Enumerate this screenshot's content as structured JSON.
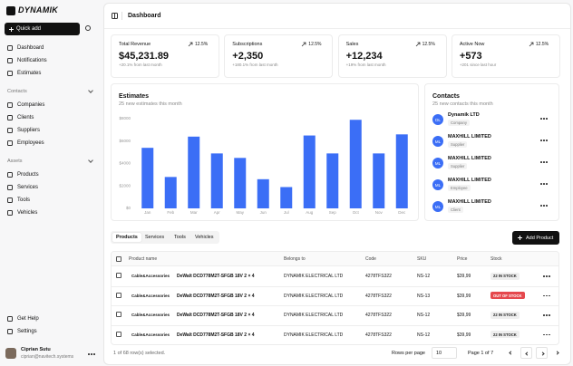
{
  "sidebar": {
    "logo": "DYNAMIK",
    "quick_add": "Quick add",
    "nav": [
      "Dashboard",
      "Notifications",
      "Estimates"
    ],
    "sections": [
      {
        "title": "Contacts",
        "items": [
          "Companies",
          "Clients",
          "Suppliers",
          "Employees"
        ]
      },
      {
        "title": "Assets",
        "items": [
          "Products",
          "Services",
          "Tools",
          "Vehicles"
        ]
      }
    ],
    "footer_nav": [
      "Get Help",
      "Settings"
    ],
    "user": {
      "name": "Ciprian Sutu",
      "email": "ciprian@navitech.systems"
    }
  },
  "header": {
    "title": "Dashboard"
  },
  "stats": [
    {
      "label": "Total Revenue",
      "change": "12.5%",
      "value": "$45,231.89",
      "note": "+20.1% from last month"
    },
    {
      "label": "Subscriptions",
      "change": "12.5%",
      "value": "+2,350",
      "note": "+180.1% from last month"
    },
    {
      "label": "Sales",
      "change": "12.5%",
      "value": "+12,234",
      "note": "+19% from last month"
    },
    {
      "label": "Active Now",
      "change": "12.5%",
      "value": "+573",
      "note": "+201 since last hour"
    }
  ],
  "chart_data": {
    "type": "bar",
    "title": "Estimates",
    "subtitle": "25 new estimates this month",
    "categories": [
      "Jan",
      "Feb",
      "Mar",
      "Apr",
      "May",
      "Jun",
      "Jul",
      "Aug",
      "Sep",
      "Oct",
      "Nov",
      "Dec"
    ],
    "values": [
      5400,
      2800,
      6400,
      4900,
      4500,
      2600,
      1900,
      6500,
      4900,
      7900,
      4900,
      6600
    ],
    "color": "#3b6ef6",
    "ylim": [
      0,
      8000
    ],
    "yticks": [
      {
        "value": 0,
        "label": "$0"
      },
      {
        "value": 2000,
        "label": "$2000"
      },
      {
        "value": 4000,
        "label": "$4000"
      },
      {
        "value": 6000,
        "label": "$6000"
      },
      {
        "value": 8000,
        "label": "$8000"
      }
    ],
    "grid": false
  },
  "contacts": {
    "title": "Contacts",
    "subtitle": "25 new contacts this month",
    "items": [
      {
        "initials": "DL",
        "name": "Dynamik LTD",
        "role": "Company"
      },
      {
        "initials": "ML",
        "name": "MAXHILL LIMITED",
        "role": "Supplier"
      },
      {
        "initials": "ML",
        "name": "MAXHILL LIMITED",
        "role": "Supplier"
      },
      {
        "initials": "ML",
        "name": "MAXHILL LIMITED",
        "role": "Employee"
      },
      {
        "initials": "ML",
        "name": "MAXHILL LIMITED",
        "role": "Client"
      }
    ]
  },
  "tabs": [
    "Products",
    "Services",
    "Tools",
    "Vehicles"
  ],
  "active_tab": 0,
  "add_button": "Add Product",
  "table": {
    "columns": [
      "Product name",
      "Belongs to",
      "Code",
      "SKU",
      "Price",
      "Stock"
    ],
    "rows": [
      {
        "category": "Cable&Accessories",
        "product": "DeWalt DCD778M2T-SFGB 18V 2 × 4",
        "belongs_to": "DYNAMIK ELECTRICAL LTD",
        "code": "4278TFS322",
        "sku": "NS-12",
        "price": "$39,99",
        "stock": "22 IN STOCK",
        "in_stock": true
      },
      {
        "category": "Cable&Accessories",
        "product": "DeWalt DCD778M2T-SFGB 18V 2 × 4",
        "belongs_to": "DYNAMIK ELECTRICAL LTD",
        "code": "4278TFS322",
        "sku": "NS-13",
        "price": "$39,99",
        "stock": "OUT OF STOCK",
        "in_stock": false
      },
      {
        "category": "Cable&Accessories",
        "product": "DeWalt DCD778M2T-SFGB 18V 2 × 4",
        "belongs_to": "DYNAMIK ELECTRICAL LTD",
        "code": "4278TFS322",
        "sku": "NS-12",
        "price": "$39,99",
        "stock": "22 IN STOCK",
        "in_stock": true
      },
      {
        "category": "Cable&Accessories",
        "product": "DeWalt DCD778M2T-SFGB 18V 2 × 4",
        "belongs_to": "DYNAMIK ELECTRICAL LTD",
        "code": "4278TFS322",
        "sku": "NS-12",
        "price": "$39,99",
        "stock": "22 IN STOCK",
        "in_stock": true
      }
    ]
  },
  "pagination": {
    "selected": "1 of 68 row(s) selected.",
    "rows_per_page_label": "Rows per page",
    "rows_per_page": "10",
    "page": "Page 1 of 7"
  }
}
